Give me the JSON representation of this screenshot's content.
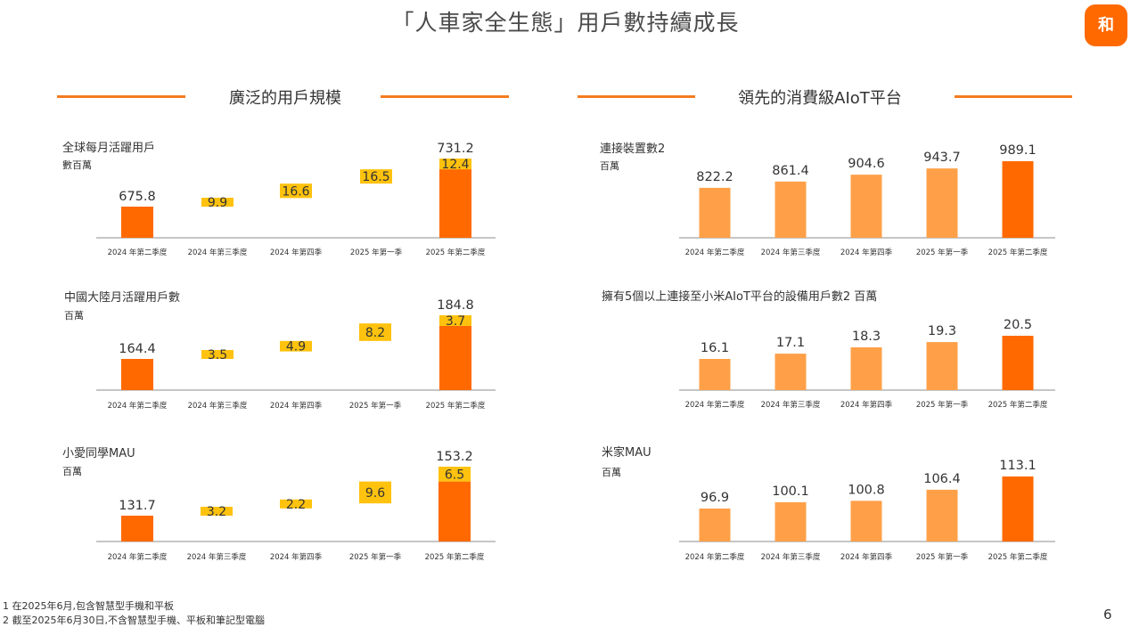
{
  "title": "「人車家全生態」用戶數持續成長",
  "logo_text": "和",
  "page_number": "6",
  "colors": {
    "orange": "#ff6900",
    "light_orange": "#ffa048",
    "yellow": "#ffc20e",
    "axis": "#8c8c8c",
    "section_line": "#f47c20"
  },
  "sections": {
    "left_title": "廣泛的用戶規模",
    "right_title": "領先的消費級AIoT平台"
  },
  "footnotes": [
    "1 在2025年6月,包含智慧型手機和平板",
    "2 截至2025年6月30日,不含智慧型手機、平板和筆記型電腦"
  ],
  "chart_data": [
    {
      "type": "bar",
      "subtype": "waterfall",
      "title": "全球每月活躍用戶",
      "unit": "數百萬",
      "categories": [
        "2024 年第二季度",
        "2024 年第三季度",
        "2024 年第四季",
        "2025 年第一季",
        "2025 年第二季度"
      ],
      "start_value": 675.8,
      "increments": [
        9.9,
        16.6,
        16.5,
        12.4
      ],
      "end_value": 731.2,
      "labels": [
        "675.8",
        "9.9",
        "16.6",
        "16.5",
        "12.4",
        "731.2"
      ]
    },
    {
      "type": "bar",
      "subtype": "waterfall",
      "title": "中國大陸月活躍用戶數",
      "unit": "百萬",
      "categories": [
        "2024 年第二季度",
        "2024 年第三季度",
        "2024 年第四季",
        "2025 年第一季",
        "2025 年第二季度"
      ],
      "start_value": 164.4,
      "increments": [
        3.5,
        4.9,
        8.2,
        3.7
      ],
      "end_value": 184.8,
      "labels": [
        "164.4",
        "3.5",
        "4.9",
        "8.2",
        "3.7",
        "184.8"
      ]
    },
    {
      "type": "bar",
      "subtype": "waterfall",
      "title": "小愛同學MAU",
      "unit": "百萬",
      "categories": [
        "2024 年第二季度",
        "2024 年第三季度",
        "2024 年第四季",
        "2025 年第一季",
        "2025 年第二季度"
      ],
      "start_value": 131.7,
      "increments": [
        3.2,
        2.2,
        9.6,
        6.5
      ],
      "end_value": 153.2,
      "labels": [
        "131.7",
        "3.2",
        "2.2",
        "9.6",
        "6.5",
        "153.2"
      ]
    },
    {
      "type": "bar",
      "title": "連接裝置數2",
      "unit": "百萬",
      "categories": [
        "2024 年第二季度",
        "2024 年第三季度",
        "2024 年第四季",
        "2025 年第一季",
        "2025 年第二季度"
      ],
      "values": [
        822.2,
        861.4,
        904.6,
        943.7,
        989.1
      ],
      "labels": [
        "822.2",
        "861.4",
        "904.6",
        "943.7",
        "989.1"
      ]
    },
    {
      "type": "bar",
      "title": "擁有5個以上連接至小米AIoT平台的設備用戶數2 百萬",
      "unit": "",
      "categories": [
        "2024 年第二季度",
        "2024 年第三季度",
        "2024 年第四季",
        "2025 年第一季",
        "2025 年第二季度"
      ],
      "values": [
        16.1,
        17.1,
        18.3,
        19.3,
        20.5
      ],
      "labels": [
        "16.1",
        "17.1",
        "18.3",
        "19.3",
        "20.5"
      ]
    },
    {
      "type": "bar",
      "title": "米家MAU",
      "unit": "百萬",
      "categories": [
        "2024 年第二季度",
        "2024 年第三季度",
        "2024 年第四季",
        "2025 年第一季",
        "2025 年第二季度"
      ],
      "values": [
        96.9,
        100.1,
        100.8,
        106.4,
        113.1
      ],
      "labels": [
        "96.9",
        "100.1",
        "100.8",
        "106.4",
        "113.1"
      ]
    }
  ]
}
